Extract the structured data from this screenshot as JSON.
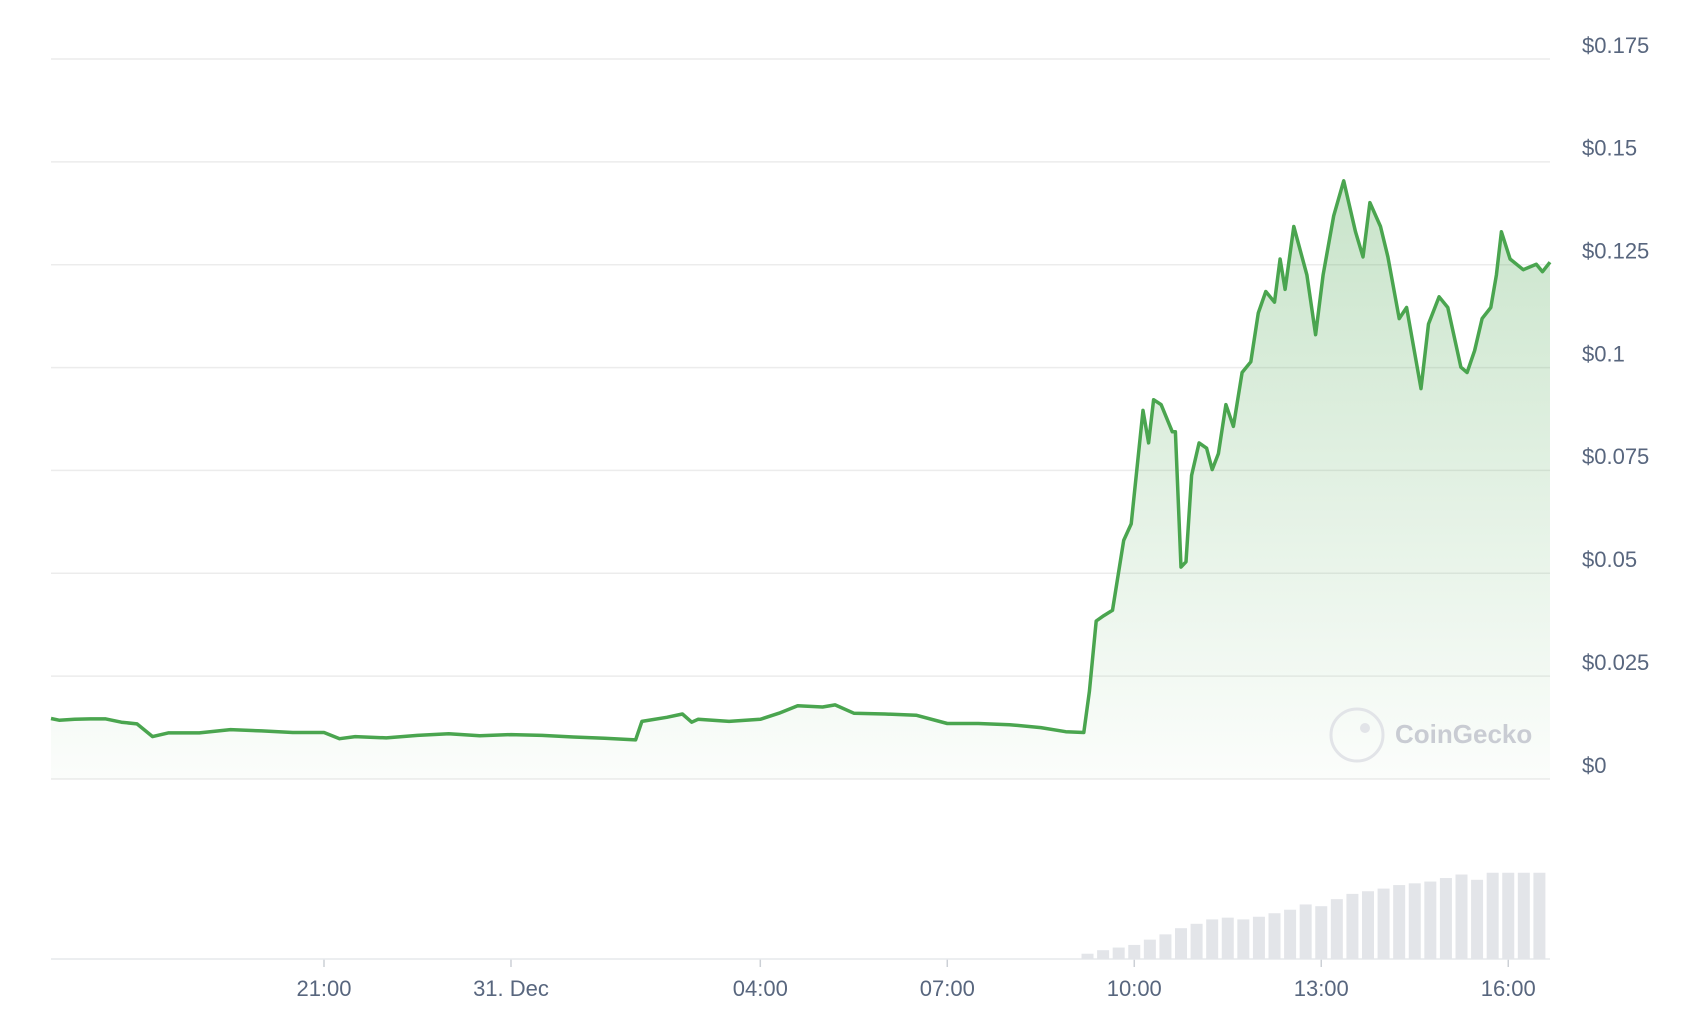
{
  "chart_data": {
    "type": "line",
    "x": [
      16.62,
      16.75,
      17.0,
      17.25,
      17.5,
      17.75,
      18.0,
      18.25,
      18.5,
      19.0,
      19.5,
      20.0,
      20.5,
      21.0,
      21.25,
      21.5,
      22.0,
      22.5,
      23.0,
      23.5,
      24.0,
      24.5,
      25.0,
      25.5,
      26.0,
      26.1,
      26.5,
      26.75,
      26.9,
      27.0,
      27.5,
      28.0,
      28.3,
      28.6,
      29.0,
      29.2,
      29.5,
      30.0,
      30.5,
      31.0,
      31.5,
      32.0,
      32.5,
      32.9,
      33.19,
      33.28,
      33.39,
      33.51,
      33.65,
      33.83,
      33.95,
      34.14,
      34.23,
      34.31,
      34.43,
      34.61,
      34.66,
      34.75,
      34.83,
      34.92,
      35.04,
      35.16,
      35.25,
      35.35,
      35.47,
      35.59,
      35.73,
      35.87,
      35.99,
      36.11,
      36.25,
      36.34,
      36.42,
      36.56,
      36.77,
      36.91,
      37.03,
      37.2,
      37.36,
      37.55,
      37.67,
      37.78,
      37.95,
      38.07,
      38.25,
      38.37,
      38.6,
      38.72,
      38.89,
      39.03,
      39.24,
      39.34,
      39.46,
      39.58,
      39.72,
      39.81,
      39.89,
      40.03,
      40.24,
      40.45,
      40.55,
      40.67
    ],
    "series": [
      {
        "color": "#4aa54f",
        "values": [
          0.0147,
          0.0143,
          0.0145,
          0.0146,
          0.0146,
          0.0138,
          0.0134,
          0.0103,
          0.0112,
          0.0112,
          0.012,
          0.0117,
          0.0113,
          0.0113,
          0.0098,
          0.0103,
          0.01,
          0.0106,
          0.011,
          0.0105,
          0.0108,
          0.0106,
          0.0102,
          0.0099,
          0.0095,
          0.014,
          0.015,
          0.0158,
          0.0138,
          0.0145,
          0.014,
          0.0145,
          0.016,
          0.0178,
          0.0175,
          0.018,
          0.016,
          0.0158,
          0.0155,
          0.0135,
          0.0135,
          0.0132,
          0.0125,
          0.0115,
          0.0113,
          0.0213,
          0.0384,
          0.0397,
          0.041,
          0.058,
          0.062,
          0.0896,
          0.0817,
          0.0922,
          0.091,
          0.0844,
          0.0844,
          0.0515,
          0.0528,
          0.0738,
          0.0817,
          0.0804,
          0.0752,
          0.0791,
          0.091,
          0.0857,
          0.0988,
          0.1014,
          0.1133,
          0.1185,
          0.1159,
          0.1264,
          0.119,
          0.1343,
          0.1225,
          0.108,
          0.1225,
          0.1369,
          0.1454,
          0.133,
          0.1269,
          0.1401,
          0.1343,
          0.1269,
          0.1119,
          0.1146,
          0.0949,
          0.1106,
          0.1172,
          0.1146,
          0.1001,
          0.0988,
          0.1041,
          0.1119,
          0.1146,
          0.1225,
          0.133,
          0.1264,
          0.1238,
          0.1251,
          0.1233,
          0.1256
        ]
      }
    ],
    "xlim": [
      16.62,
      40.67
    ],
    "xticks": [
      {
        "value": 21,
        "label": "21:00"
      },
      {
        "value": 24,
        "label": "31. Dec"
      },
      {
        "value": 28,
        "label": "04:00"
      },
      {
        "value": 31,
        "label": "07:00"
      },
      {
        "value": 34,
        "label": "10:00"
      },
      {
        "value": 37,
        "label": "13:00"
      },
      {
        "value": 40,
        "label": "16:00"
      }
    ],
    "ylim": [
      0,
      0.175
    ],
    "yticks": [
      {
        "value": 0,
        "label": "$0"
      },
      {
        "value": 0.025,
        "label": "$0.025"
      },
      {
        "value": 0.05,
        "label": "$0.05"
      },
      {
        "value": 0.075,
        "label": "$0.075"
      },
      {
        "value": 0.1,
        "label": "$0.1"
      },
      {
        "value": 0.125,
        "label": "$0.125"
      },
      {
        "value": 0.15,
        "label": "$0.15"
      },
      {
        "value": 0.175,
        "label": "$0.175"
      }
    ],
    "grid": true,
    "volume": {
      "color": "#e3e5e9",
      "ylim": [
        0,
        100
      ],
      "x": [
        33.25,
        33.5,
        33.75,
        34.0,
        34.25,
        34.5,
        34.75,
        35.0,
        35.25,
        35.5,
        35.75,
        36.0,
        36.25,
        36.5,
        36.75,
        37.0,
        37.25,
        37.5,
        37.75,
        38.0,
        38.25,
        38.5,
        38.75,
        39.0,
        39.25,
        39.5,
        39.75,
        40.0,
        40.25,
        40.5
      ],
      "values": [
        6,
        10,
        13,
        16,
        22,
        28,
        35,
        40,
        45,
        47,
        45,
        48,
        52,
        56,
        62,
        60,
        68,
        74,
        77,
        80,
        84,
        86,
        88,
        92,
        96,
        90,
        98,
        98,
        98,
        98
      ]
    },
    "watermark": "CoinGecko"
  }
}
